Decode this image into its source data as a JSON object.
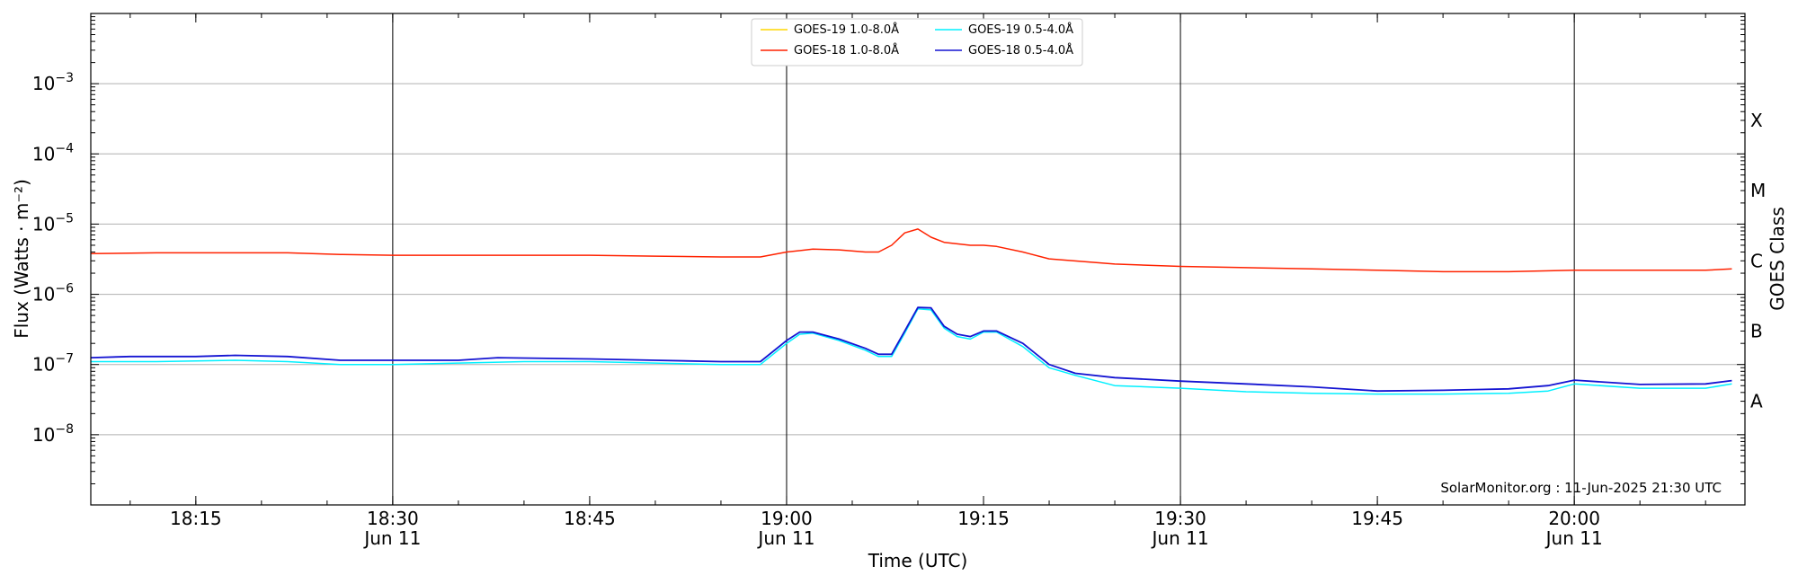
{
  "chart_data": {
    "type": "line",
    "xlabel": "Time (UTC)",
    "ylabel": "Flux (Watts · m⁻²)",
    "y2label": "GOES Class",
    "yscale": "log",
    "ylim": [
      1e-09,
      0.01
    ],
    "xlim": [
      "18:07",
      "20:13"
    ],
    "grid": "horizontal at decades",
    "legend_position": "top-center",
    "credit": "SolarMonitor.org : 11-Jun-2025 21:30 UTC",
    "y_ticks": [
      {
        "value": 1e-08,
        "label": "10",
        "exp": "−8"
      },
      {
        "value": 1e-07,
        "label": "10",
        "exp": "−7"
      },
      {
        "value": 1e-06,
        "label": "10",
        "exp": "−6"
      },
      {
        "value": 1e-05,
        "label": "10",
        "exp": "−5"
      },
      {
        "value": 0.0001,
        "label": "10",
        "exp": "−4"
      },
      {
        "value": 0.001,
        "label": "10",
        "exp": "−3"
      }
    ],
    "x_ticks": [
      {
        "time": "18:15",
        "label": "18:15",
        "sub": ""
      },
      {
        "time": "18:30",
        "label": "18:30",
        "sub": "Jun 11"
      },
      {
        "time": "18:45",
        "label": "18:45",
        "sub": ""
      },
      {
        "time": "19:00",
        "label": "19:00",
        "sub": "Jun 11"
      },
      {
        "time": "19:15",
        "label": "19:15",
        "sub": ""
      },
      {
        "time": "19:30",
        "label": "19:30",
        "sub": "Jun 11"
      },
      {
        "time": "19:45",
        "label": "19:45",
        "sub": ""
      },
      {
        "time": "20:00",
        "label": "20:00",
        "sub": "Jun 11"
      }
    ],
    "vertical_lines": [
      "18:30",
      "19:00",
      "19:30",
      "20:00"
    ],
    "goes_classes": [
      {
        "label": "A",
        "value": 3e-08
      },
      {
        "label": "B",
        "value": 3e-07
      },
      {
        "label": "C",
        "value": 3e-06
      },
      {
        "label": "M",
        "value": 3e-05
      },
      {
        "label": "X",
        "value": 0.0003
      }
    ],
    "series": [
      {
        "name": "GOES-19 1.0-8.0Å",
        "color": "#ffd700",
        "x": [],
        "y": []
      },
      {
        "name": "GOES-18 1.0-8.0Å",
        "color": "#ff2200",
        "x": [
          "18:07",
          "18:12",
          "18:18",
          "18:22",
          "18:26",
          "18:30",
          "18:35",
          "18:40",
          "18:45",
          "18:50",
          "18:55",
          "18:58",
          "19:00",
          "19:02",
          "19:04",
          "19:06",
          "19:07",
          "19:08",
          "19:09",
          "19:10",
          "19:11",
          "19:12",
          "19:14",
          "19:15",
          "19:16",
          "19:18",
          "19:20",
          "19:25",
          "19:30",
          "19:35",
          "19:40",
          "19:45",
          "19:50",
          "19:55",
          "20:00",
          "20:05",
          "20:10",
          "20:12"
        ],
        "y": [
          3.8e-06,
          3.9e-06,
          3.9e-06,
          3.9e-06,
          3.7e-06,
          3.6e-06,
          3.6e-06,
          3.6e-06,
          3.6e-06,
          3.5e-06,
          3.4e-06,
          3.4e-06,
          4e-06,
          4.4e-06,
          4.3e-06,
          4e-06,
          4e-06,
          5e-06,
          7.5e-06,
          8.5e-06,
          6.5e-06,
          5.5e-06,
          5e-06,
          5e-06,
          4.8e-06,
          4e-06,
          3.2e-06,
          2.7e-06,
          2.5e-06,
          2.4e-06,
          2.3e-06,
          2.2e-06,
          2.1e-06,
          2.1e-06,
          2.2e-06,
          2.2e-06,
          2.2e-06,
          2.3e-06
        ]
      },
      {
        "name": "GOES-19 0.5-4.0Å",
        "color": "#00f0ff",
        "x": [
          "18:07",
          "18:12",
          "18:18",
          "18:22",
          "18:26",
          "18:30",
          "18:35",
          "18:40",
          "18:45",
          "18:50",
          "18:55",
          "18:58",
          "19:00",
          "19:01",
          "19:02",
          "19:04",
          "19:06",
          "19:07",
          "19:08",
          "19:09",
          "19:10",
          "19:11",
          "19:12",
          "19:13",
          "19:14",
          "19:15",
          "19:16",
          "19:18",
          "19:20",
          "19:22",
          "19:25",
          "19:30",
          "19:35",
          "19:40",
          "19:45",
          "19:50",
          "19:55",
          "19:58",
          "20:00",
          "20:05",
          "20:10",
          "20:12"
        ],
        "y": [
          1.1e-07,
          1.1e-07,
          1.15e-07,
          1.1e-07,
          1e-07,
          1e-07,
          1.05e-07,
          1.1e-07,
          1.1e-07,
          1.05e-07,
          1e-07,
          1e-07,
          2e-07,
          2.7e-07,
          2.8e-07,
          2.2e-07,
          1.6e-07,
          1.3e-07,
          1.3e-07,
          2.8e-07,
          6.2e-07,
          6e-07,
          3.3e-07,
          2.5e-07,
          2.3e-07,
          2.9e-07,
          2.9e-07,
          1.8e-07,
          9e-08,
          7e-08,
          5e-08,
          4.6e-08,
          4.1e-08,
          3.9e-08,
          3.8e-08,
          3.8e-08,
          3.9e-08,
          4.2e-08,
          5.3e-08,
          4.6e-08,
          4.6e-08,
          5.3e-08
        ]
      },
      {
        "name": "GOES-18 0.5-4.0Å",
        "color": "#1414d2",
        "x": [
          "18:07",
          "18:10",
          "18:15",
          "18:18",
          "18:22",
          "18:26",
          "18:30",
          "18:35",
          "18:38",
          "18:45",
          "18:50",
          "18:55",
          "18:58",
          "19:00",
          "19:01",
          "19:02",
          "19:04",
          "19:06",
          "19:07",
          "19:08",
          "19:09",
          "19:10",
          "19:11",
          "19:12",
          "19:13",
          "19:14",
          "19:15",
          "19:16",
          "19:18",
          "19:20",
          "19:22",
          "19:25",
          "19:30",
          "19:35",
          "19:40",
          "19:45",
          "19:50",
          "19:55",
          "19:58",
          "20:00",
          "20:05",
          "20:10",
          "20:12"
        ],
        "y": [
          1.25e-07,
          1.3e-07,
          1.3e-07,
          1.35e-07,
          1.3e-07,
          1.15e-07,
          1.15e-07,
          1.15e-07,
          1.25e-07,
          1.2e-07,
          1.15e-07,
          1.1e-07,
          1.1e-07,
          2.2e-07,
          2.9e-07,
          2.9e-07,
          2.3e-07,
          1.7e-07,
          1.4e-07,
          1.4e-07,
          3e-07,
          6.5e-07,
          6.4e-07,
          3.5e-07,
          2.7e-07,
          2.5e-07,
          3e-07,
          3e-07,
          2e-07,
          1e-07,
          7.5e-08,
          6.5e-08,
          5.8e-08,
          5.3e-08,
          4.8e-08,
          4.2e-08,
          4.3e-08,
          4.5e-08,
          5e-08,
          6e-08,
          5.2e-08,
          5.3e-08,
          5.9e-08
        ]
      }
    ]
  }
}
